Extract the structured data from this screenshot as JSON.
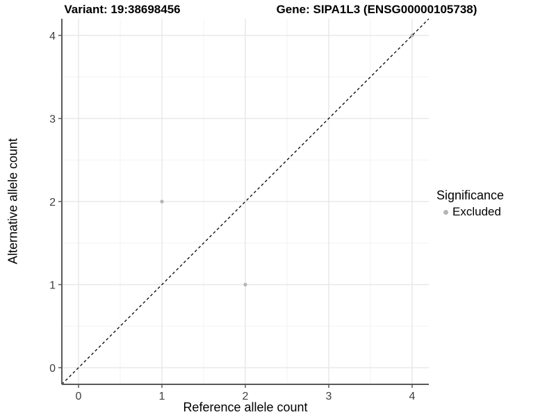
{
  "chart_data": {
    "type": "scatter",
    "titles": {
      "variant": "Variant: 19:38698456",
      "gene": "Gene: SIPA1L3 (ENSG00000105738)"
    },
    "xlabel": "Reference allele count",
    "ylabel": "Alternative allele count",
    "x_ticks": [
      0,
      1,
      2,
      3,
      4
    ],
    "y_ticks": [
      0,
      1,
      2,
      3,
      4
    ],
    "xlim": [
      -0.2,
      4.2
    ],
    "ylim": [
      -0.2,
      4.2
    ],
    "grid": {
      "major": true,
      "minor": true,
      "major_color": "#e8e8e8",
      "minor_color": "#f3f3f3"
    },
    "series": [
      {
        "name": "Excluded",
        "color": "#b5b5b5",
        "points": [
          [
            1,
            2
          ],
          [
            2,
            1
          ],
          [
            4,
            4
          ]
        ]
      }
    ],
    "reference_line": {
      "style": "dashed",
      "slope": 1,
      "intercept": 0,
      "color": "#000000"
    },
    "legend": {
      "position": "right",
      "title": "Significance",
      "items": [
        {
          "label": "Excluded",
          "color": "#b5b5b5",
          "marker": "circle"
        }
      ]
    },
    "axis_color": "#595959",
    "tick_label_color": "#404040"
  }
}
